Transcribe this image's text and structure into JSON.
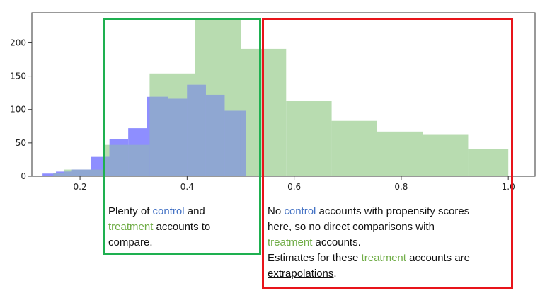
{
  "chart_data": {
    "type": "bar",
    "xlim": [
      0.11,
      1.05
    ],
    "ylim": [
      0,
      245
    ],
    "xticks": [
      0.2,
      0.4,
      0.6,
      0.8,
      1.0
    ],
    "xtick_labels": [
      "0.2",
      "0.4",
      "0.6",
      "0.8",
      "1.0"
    ],
    "yticks": [
      0,
      50,
      100,
      150,
      200
    ],
    "ytick_labels": [
      "0",
      "50",
      "100",
      "150",
      "200"
    ],
    "colors": {
      "treatment": "#b8dcb0",
      "control": "#8e8eff",
      "overlap": "#8fa7d2",
      "axis": "#333333"
    },
    "series": [
      {
        "key": "treatment",
        "bins": [
          {
            "x0": 0.15,
            "x1": 0.17,
            "value": 5
          },
          {
            "x0": 0.17,
            "x1": 0.245,
            "value": 10
          },
          {
            "x0": 0.245,
            "x1": 0.33,
            "value": 47
          },
          {
            "x0": 0.33,
            "x1": 0.415,
            "value": 154
          },
          {
            "x0": 0.415,
            "x1": 0.5,
            "value": 236
          },
          {
            "x0": 0.5,
            "x1": 0.585,
            "value": 191
          },
          {
            "x0": 0.585,
            "x1": 0.67,
            "value": 113
          },
          {
            "x0": 0.67,
            "x1": 0.755,
            "value": 83
          },
          {
            "x0": 0.755,
            "x1": 0.84,
            "value": 67
          },
          {
            "x0": 0.84,
            "x1": 0.925,
            "value": 62
          },
          {
            "x0": 0.925,
            "x1": 1.0,
            "value": 41
          }
        ]
      },
      {
        "key": "control",
        "bins": [
          {
            "x0": 0.13,
            "x1": 0.155,
            "value": 4
          },
          {
            "x0": 0.155,
            "x1": 0.185,
            "value": 7
          },
          {
            "x0": 0.185,
            "x1": 0.22,
            "value": 10
          },
          {
            "x0": 0.22,
            "x1": 0.255,
            "value": 29
          },
          {
            "x0": 0.255,
            "x1": 0.29,
            "value": 56
          },
          {
            "x0": 0.29,
            "x1": 0.325,
            "value": 72
          },
          {
            "x0": 0.325,
            "x1": 0.365,
            "value": 119
          },
          {
            "x0": 0.365,
            "x1": 0.4,
            "value": 116
          },
          {
            "x0": 0.4,
            "x1": 0.435,
            "value": 137
          },
          {
            "x0": 0.435,
            "x1": 0.47,
            "value": 122
          },
          {
            "x0": 0.47,
            "x1": 0.51,
            "value": 98
          }
        ]
      }
    ]
  },
  "annotations": {
    "left": {
      "plenty_of": "Plenty of",
      "control": "control",
      "and": "and",
      "treatment": "treatment",
      "accounts_to": "accounts to",
      "compare": "compare."
    },
    "right": {
      "no": "No",
      "control": "control",
      "accounts_with": "accounts with propensity scores",
      "here": "here, so no direct comparisons with",
      "treatment1": "treatment",
      "accounts_period": "accounts.",
      "estimates_for": "Estimates for these",
      "treatment2": "treatment",
      "accounts_are": "accounts are",
      "extrapolations": "extrapolations",
      "period": "."
    }
  }
}
